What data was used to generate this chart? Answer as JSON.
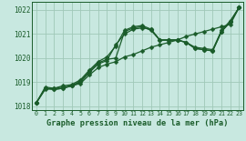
{
  "background_color": "#c8e8e0",
  "grid_color": "#a0c8b8",
  "line_color": "#1a5c2a",
  "title": "Graphe pression niveau de la mer (hPa)",
  "xlim": [
    -0.5,
    23.5
  ],
  "ylim": [
    1017.85,
    1022.35
  ],
  "yticks": [
    1018,
    1019,
    1020,
    1021,
    1022
  ],
  "xticks": [
    0,
    1,
    2,
    3,
    4,
    5,
    6,
    7,
    8,
    9,
    10,
    11,
    12,
    13,
    14,
    15,
    16,
    17,
    18,
    19,
    20,
    21,
    22,
    23
  ],
  "series": [
    [
      1018.15,
      1018.7,
      1018.75,
      1018.8,
      1018.85,
      1018.95,
      1019.3,
      1019.6,
      1019.75,
      1019.85,
      1020.05,
      1020.15,
      1020.3,
      1020.45,
      1020.55,
      1020.65,
      1020.75,
      1020.9,
      1021.0,
      1021.1,
      1021.2,
      1021.3,
      1021.4,
      1022.1
    ],
    [
      1018.15,
      1018.75,
      1018.7,
      1018.75,
      1018.85,
      1019.0,
      1019.4,
      1019.75,
      1019.9,
      1020.55,
      1021.0,
      1021.2,
      1021.25,
      1021.2,
      1020.75,
      1020.75,
      1020.75,
      1020.65,
      1020.4,
      1020.35,
      1020.3,
      1021.1,
      1021.5,
      1022.1
    ],
    [
      1018.15,
      1018.75,
      1018.7,
      1018.75,
      1018.85,
      1019.05,
      1019.45,
      1019.8,
      1019.95,
      1020.0,
      1021.1,
      1021.25,
      1021.3,
      1021.15,
      1020.75,
      1020.75,
      1020.75,
      1020.65,
      1020.4,
      1020.35,
      1020.3,
      1021.1,
      1021.5,
      1022.1
    ],
    [
      1018.15,
      1018.8,
      1018.75,
      1018.85,
      1018.9,
      1019.1,
      1019.5,
      1019.85,
      1020.05,
      1020.5,
      1021.15,
      1021.3,
      1021.35,
      1021.2,
      1020.75,
      1020.75,
      1020.75,
      1020.65,
      1020.45,
      1020.4,
      1020.35,
      1021.15,
      1021.55,
      1022.1
    ]
  ],
  "markersize": 2.5,
  "linewidth": 0.9
}
